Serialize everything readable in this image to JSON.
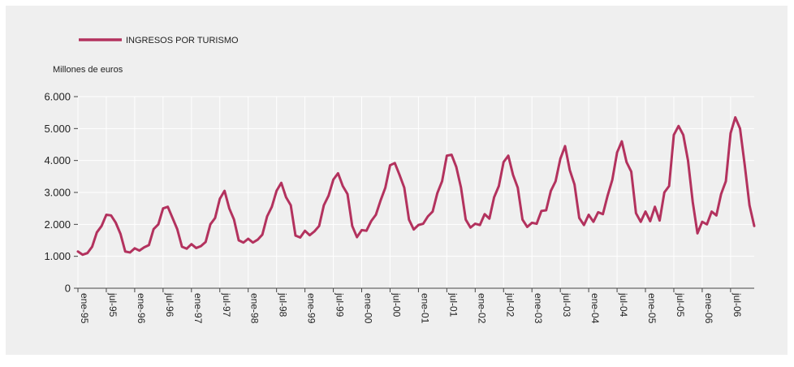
{
  "chart_data": {
    "type": "line",
    "ylabel": "Millones de euros",
    "ylim": [
      0,
      6000
    ],
    "yticks": [
      0,
      1000,
      2000,
      3000,
      4000,
      5000,
      6000
    ],
    "ytick_labels": [
      "0",
      "1.000",
      "2.000",
      "3.000",
      "4.000",
      "5.000",
      "6.000"
    ],
    "x_start": "1995-01",
    "x_end": "2006-12",
    "xtick_labels": [
      "ene-95",
      "jul-95",
      "ene-96",
      "jul-96",
      "ene-97",
      "jul-97",
      "ene-98",
      "jul-98",
      "ene-99",
      "jul-99",
      "ene-00",
      "jul-00",
      "ene-01",
      "jul-01",
      "ene-02",
      "jul-02",
      "ene-03",
      "jul-03",
      "ene-04",
      "jul-04",
      "ene-05",
      "jul-05",
      "ene-06",
      "jul-06"
    ],
    "grid": "vertical",
    "legend_position": "top-left",
    "series": [
      {
        "name": "INGRESOS POR TURISMO",
        "color": "#b3325e",
        "values": [
          1150,
          1050,
          1100,
          1300,
          1750,
          1950,
          2300,
          2280,
          2050,
          1700,
          1150,
          1120,
          1250,
          1180,
          1280,
          1350,
          1850,
          2000,
          2500,
          2550,
          2200,
          1850,
          1300,
          1240,
          1380,
          1260,
          1320,
          1450,
          2000,
          2200,
          2800,
          3050,
          2500,
          2150,
          1500,
          1430,
          1550,
          1430,
          1520,
          1680,
          2250,
          2550,
          3050,
          3300,
          2850,
          2600,
          1650,
          1590,
          1800,
          1660,
          1780,
          1950,
          2600,
          2900,
          3400,
          3600,
          3200,
          2950,
          1950,
          1600,
          1820,
          1800,
          2100,
          2300,
          2750,
          3150,
          3850,
          3920,
          3550,
          3150,
          2150,
          1840,
          1980,
          2020,
          2250,
          2400,
          2980,
          3350,
          4150,
          4180,
          3800,
          3150,
          2150,
          1900,
          2020,
          1980,
          2320,
          2180,
          2850,
          3200,
          3950,
          4150,
          3550,
          3150,
          2150,
          1920,
          2050,
          2020,
          2420,
          2440,
          3050,
          3350,
          4050,
          4450,
          3700,
          3250,
          2200,
          1980,
          2300,
          2080,
          2380,
          2320,
          2900,
          3400,
          4250,
          4600,
          3950,
          3650,
          2350,
          2080,
          2400,
          2100,
          2550,
          2120,
          3000,
          3200,
          4800,
          5080,
          4800,
          4000,
          2700,
          1720,
          2080,
          2000,
          2400,
          2280,
          2950,
          3350,
          4850,
          5350,
          5000,
          3850,
          2600,
          1950
        ]
      }
    ]
  }
}
